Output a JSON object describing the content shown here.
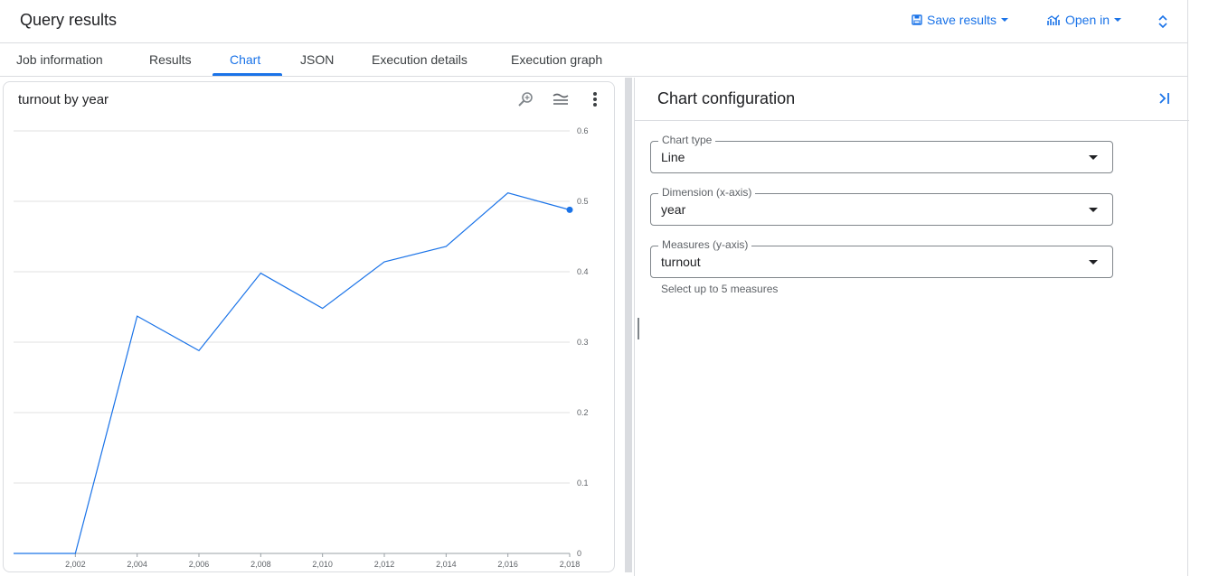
{
  "header": {
    "title": "Query results",
    "save_label": "Save results",
    "open_label": "Open in"
  },
  "tabs": [
    {
      "label": "Job information"
    },
    {
      "label": "Results"
    },
    {
      "label": "Chart",
      "active": true
    },
    {
      "label": "JSON"
    },
    {
      "label": "Execution details"
    },
    {
      "label": "Execution graph"
    }
  ],
  "chart_card": {
    "title": "turnout by year",
    "tools": [
      "zoom-icon",
      "legend-icon",
      "more-vert-icon"
    ]
  },
  "chart_data": {
    "type": "line",
    "title": "turnout by year",
    "x": [
      2000,
      2002,
      2004,
      2006,
      2008,
      2010,
      2012,
      2014,
      2016,
      2018
    ],
    "series": [
      {
        "values": [
          0,
          0,
          0.337,
          0.288,
          0.398,
          0.348,
          0.414,
          0.436,
          0.512,
          0.488
        ]
      }
    ],
    "x_ticks": [
      "2,002",
      "2,004",
      "2,006",
      "2,008",
      "2,010",
      "2,012",
      "2,014",
      "2,016",
      "2,018"
    ],
    "y_ticks": [
      "0",
      "0.1",
      "0.2",
      "0.3",
      "0.4",
      "0.5",
      "0.6"
    ],
    "xlim": [
      2000,
      2018
    ],
    "ylim": [
      0,
      0.6
    ],
    "grid": true,
    "line_color": "#1a73e8"
  },
  "config": {
    "title": "Chart configuration",
    "chart_type": {
      "label": "Chart type",
      "value": "Line"
    },
    "dimension": {
      "label": "Dimension (x-axis)",
      "value": "year"
    },
    "measures": {
      "label": "Measures (y-axis)",
      "value": "turnout"
    },
    "hint": "Select up to 5 measures"
  },
  "colors": {
    "accent": "#1a73e8",
    "border": "#dadce0",
    "text": "#202124",
    "muted": "#5f6368"
  }
}
